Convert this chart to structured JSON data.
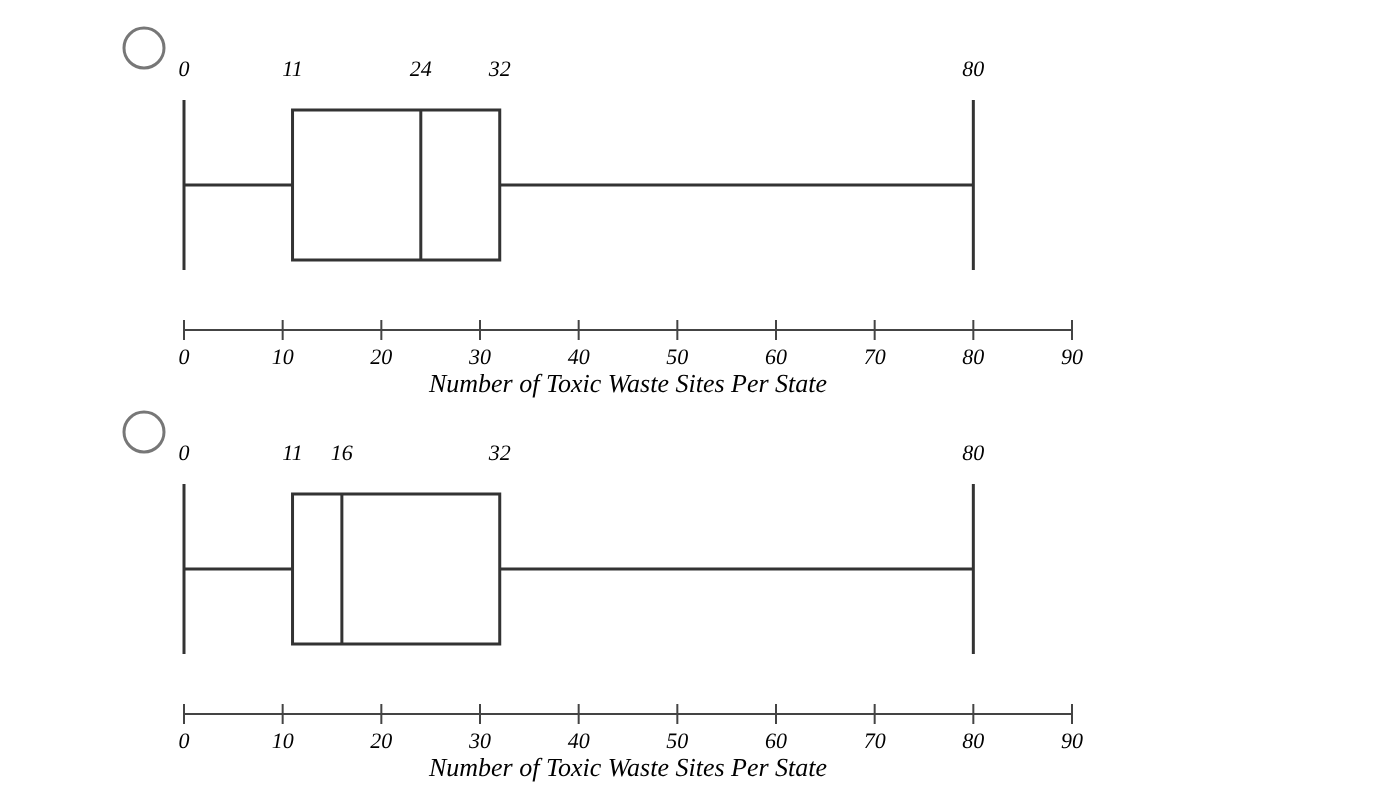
{
  "chart_data": [
    {
      "type": "box",
      "orientation": "horizontal",
      "categories": [
        null
      ],
      "boxes": [
        {
          "low": 0,
          "q1": 11,
          "median": 24,
          "q3": 32,
          "high": 80
        }
      ],
      "color": "#333333",
      "xlim": [
        0,
        90
      ],
      "xticks": [
        0,
        10,
        20,
        30,
        40,
        50,
        60,
        70,
        80,
        90
      ],
      "xlabel": "Number of Toxic Waste Sites Per State",
      "annotations": [
        "0",
        "11",
        "24",
        "32",
        "80"
      ]
    },
    {
      "type": "box",
      "orientation": "horizontal",
      "categories": [
        null
      ],
      "boxes": [
        {
          "low": 0,
          "q1": 11,
          "median": 16,
          "q3": 32,
          "high": 80
        }
      ],
      "color": "#333333",
      "xlim": [
        0,
        90
      ],
      "xticks": [
        0,
        10,
        20,
        30,
        40,
        50,
        60,
        70,
        80,
        90
      ],
      "xlabel": "Number of Toxic Waste Sites Per State",
      "annotations": [
        "0",
        "11",
        "16",
        "32",
        "80"
      ]
    }
  ]
}
